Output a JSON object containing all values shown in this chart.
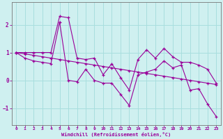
{
  "x": [
    0,
    1,
    2,
    3,
    4,
    5,
    6,
    7,
    8,
    9,
    10,
    11,
    12,
    13,
    14,
    15,
    16,
    17,
    18,
    19,
    20,
    21,
    22,
    23
  ],
  "y_straight": [
    1.0,
    0.95,
    0.9,
    0.85,
    0.8,
    0.75,
    0.7,
    0.65,
    0.6,
    0.55,
    0.5,
    0.45,
    0.4,
    0.35,
    0.3,
    0.25,
    0.2,
    0.15,
    0.1,
    0.05,
    0.0,
    -0.05,
    -0.1,
    -0.15
  ],
  "y_upper": [
    1.0,
    1.0,
    1.0,
    1.0,
    1.0,
    2.3,
    2.25,
    0.8,
    0.75,
    0.8,
    0.2,
    0.6,
    0.1,
    -0.35,
    0.75,
    1.1,
    0.8,
    1.15,
    0.85,
    0.65,
    0.65,
    0.55,
    0.4,
    -0.1
  ],
  "y_lower": [
    1.0,
    0.8,
    0.7,
    0.65,
    0.6,
    2.1,
    0.0,
    -0.05,
    0.4,
    0.0,
    -0.1,
    -0.1,
    -0.5,
    -0.9,
    0.2,
    0.3,
    0.4,
    0.7,
    0.45,
    0.55,
    -0.35,
    -0.3,
    -0.85,
    -1.3
  ],
  "background_color": "#cff0f0",
  "grid_color": "#a8dede",
  "line_color": "#990099",
  "xlabel": "Windchill (Refroidissement éolien,°C)",
  "xlim": [
    -0.5,
    23.5
  ],
  "ylim": [
    -1.6,
    2.8
  ],
  "yticks": [
    -1,
    0,
    1,
    2
  ],
  "xticks": [
    0,
    1,
    2,
    3,
    4,
    5,
    6,
    7,
    8,
    9,
    10,
    11,
    12,
    13,
    14,
    15,
    16,
    17,
    18,
    19,
    20,
    21,
    22,
    23
  ]
}
